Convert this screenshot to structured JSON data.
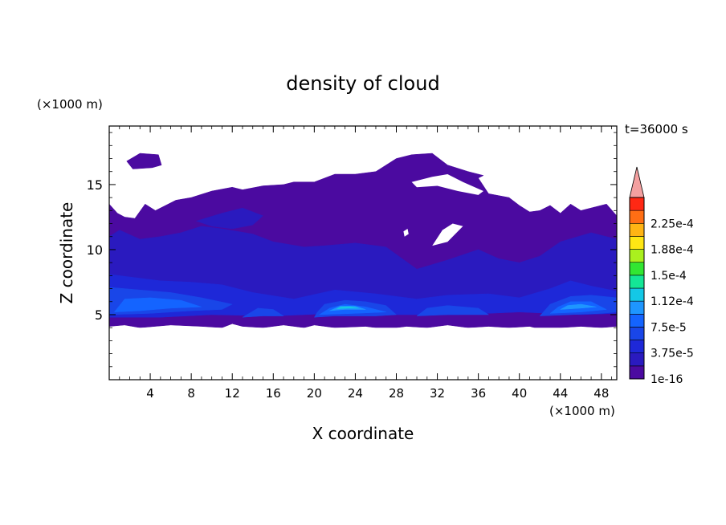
{
  "chart_data": {
    "type": "heatmap",
    "title": "density of cloud",
    "xlabel": "X coordinate",
    "ylabel": "Z coordinate",
    "x_unit": "(×1000 m)",
    "y_unit": "(×1000 m)",
    "time_label": "t=36000 s",
    "xlim": [
      0,
      49.5
    ],
    "ylim": [
      0,
      19.5
    ],
    "x_ticks": [
      4,
      8,
      12,
      16,
      20,
      24,
      28,
      32,
      36,
      40,
      44,
      48
    ],
    "y_ticks": [
      5,
      10,
      15
    ],
    "colorbar": {
      "labels": [
        "2.25e-4",
        "1.88e-4",
        "1.5e-4",
        "1.12e-4",
        "7.5e-5",
        "3.75e-5",
        "1e-16"
      ],
      "levels": [
        1e-16,
        1.875e-05,
        3.75e-05,
        5.625e-05,
        7.5e-05,
        9.375e-05,
        0.0001125,
        0.00013125,
        0.00015,
        0.00016875,
        0.0001875,
        0.00020625,
        0.000225,
        0.00024375
      ],
      "colors": [
        "#4B0AA0",
        "#2A1ABF",
        "#1E28D8",
        "#1946E8",
        "#1464FF",
        "#1E96FF",
        "#14C8E6",
        "#14E696",
        "#32E632",
        "#AAF01E",
        "#FFE614",
        "#FFB414",
        "#FF6E14",
        "#FF2814"
      ],
      "extend_color": "#F4A0A0"
    },
    "regions": [
      {
        "level": 0,
        "points": [
          [
            0,
            4.1
          ],
          [
            1.5,
            4.2
          ],
          [
            3,
            4.0
          ],
          [
            6,
            4.2
          ],
          [
            9,
            4.1
          ],
          [
            11,
            4.0
          ],
          [
            12,
            4.3
          ],
          [
            13,
            4.1
          ],
          [
            15,
            4.0
          ],
          [
            17,
            4.2
          ],
          [
            19,
            4.0
          ],
          [
            20,
            4.2
          ],
          [
            22,
            4.0
          ],
          [
            25,
            4.1
          ],
          [
            27,
            3.9
          ],
          [
            29,
            4.1
          ],
          [
            31,
            4.0
          ],
          [
            33,
            4.2
          ],
          [
            35,
            4.0
          ],
          [
            37,
            4.1
          ],
          [
            39,
            4.0
          ],
          [
            41,
            4.1
          ],
          [
            42,
            3.9
          ],
          [
            44,
            4.0
          ],
          [
            46,
            4.1
          ],
          [
            48,
            4.0
          ],
          [
            49.5,
            4.1
          ],
          [
            49.5,
            12.6
          ],
          [
            48.5,
            13.5
          ],
          [
            46,
            13.0
          ],
          [
            45,
            13.5
          ],
          [
            44,
            12.8
          ],
          [
            43,
            13.4
          ],
          [
            42,
            13.0
          ],
          [
            41,
            12.9
          ],
          [
            40,
            13.4
          ],
          [
            39,
            14.0
          ],
          [
            37,
            14.3
          ],
          [
            36,
            15.5
          ],
          [
            36.5,
            15.7
          ],
          [
            35,
            16.0
          ],
          [
            33,
            16.5
          ],
          [
            31.5,
            17.4
          ],
          [
            29.5,
            17.3
          ],
          [
            28,
            17.0
          ],
          [
            26,
            16.0
          ],
          [
            24,
            15.8
          ],
          [
            22,
            15.8
          ],
          [
            20,
            15.2
          ],
          [
            18,
            15.2
          ],
          [
            17,
            15.0
          ],
          [
            15,
            14.9
          ],
          [
            13,
            14.6
          ],
          [
            12,
            14.8
          ],
          [
            10,
            14.5
          ],
          [
            8,
            14.0
          ],
          [
            6.5,
            13.8
          ],
          [
            4.5,
            13.0
          ],
          [
            3.5,
            13.5
          ],
          [
            2.5,
            12.4
          ],
          [
            1.5,
            12.5
          ],
          [
            0.8,
            12.8
          ],
          [
            0,
            13.5
          ]
        ]
      },
      {
        "level": 0,
        "points": [
          [
            1.7,
            16.8
          ],
          [
            3,
            17.4
          ],
          [
            4.8,
            17.3
          ],
          [
            5.1,
            16.5
          ],
          [
            4.2,
            16.3
          ],
          [
            2.3,
            16.2
          ]
        ]
      },
      {
        "level": 1,
        "points": [
          [
            0,
            5.2
          ],
          [
            3,
            5.0
          ],
          [
            6,
            5.1
          ],
          [
            9,
            5.3
          ],
          [
            12,
            5.5
          ],
          [
            16,
            5.3
          ],
          [
            20,
            5.6
          ],
          [
            25,
            5.4
          ],
          [
            29,
            5.2
          ],
          [
            33,
            5.5
          ],
          [
            37,
            5.3
          ],
          [
            40,
            5.6
          ],
          [
            44,
            5.3
          ],
          [
            49.5,
            5.5
          ],
          [
            49.5,
            10.8
          ],
          [
            47,
            11.3
          ],
          [
            44,
            10.6
          ],
          [
            42,
            9.5
          ],
          [
            40,
            9.0
          ],
          [
            38,
            9.3
          ],
          [
            36,
            10.0
          ],
          [
            33,
            9.2
          ],
          [
            30,
            8.5
          ],
          [
            27,
            10.2
          ],
          [
            24,
            10.5
          ],
          [
            21,
            10.3
          ],
          [
            19,
            10.2
          ],
          [
            16,
            10.6
          ],
          [
            14,
            11.2
          ],
          [
            11,
            11.6
          ],
          [
            9,
            11.8
          ],
          [
            7,
            11.3
          ],
          [
            5,
            11.0
          ],
          [
            3,
            10.8
          ],
          [
            1,
            11.5
          ],
          [
            0,
            11.0
          ]
        ]
      },
      {
        "level": 1,
        "points": [
          [
            8.5,
            12.2
          ],
          [
            11,
            12.8
          ],
          [
            13,
            13.2
          ],
          [
            15,
            12.6
          ],
          [
            14,
            11.9
          ],
          [
            12,
            11.6
          ],
          [
            10,
            11.8
          ]
        ]
      },
      {
        "level": 2,
        "points": [
          [
            0,
            4.8
          ],
          [
            5,
            4.8
          ],
          [
            10,
            5.0
          ],
          [
            16,
            4.9
          ],
          [
            22,
            5.1
          ],
          [
            28,
            5.0
          ],
          [
            34,
            5.0
          ],
          [
            40,
            5.2
          ],
          [
            46,
            5.0
          ],
          [
            49.5,
            5.1
          ],
          [
            49.5,
            6.8
          ],
          [
            47,
            7.2
          ],
          [
            45,
            7.6
          ],
          [
            43,
            7.0
          ],
          [
            40,
            6.3
          ],
          [
            37,
            6.6
          ],
          [
            33,
            6.5
          ],
          [
            30,
            6.2
          ],
          [
            26,
            6.6
          ],
          [
            22,
            6.9
          ],
          [
            18,
            6.2
          ],
          [
            14,
            6.7
          ],
          [
            11,
            7.3
          ],
          [
            8,
            7.5
          ],
          [
            5,
            7.6
          ],
          [
            2,
            7.9
          ],
          [
            0,
            8.1
          ]
        ]
      },
      {
        "level": 3,
        "points": [
          [
            0,
            5.0
          ],
          [
            4,
            5.1
          ],
          [
            8,
            5.3
          ],
          [
            11,
            5.4
          ],
          [
            12,
            5.8
          ],
          [
            9,
            6.3
          ],
          [
            6,
            6.7
          ],
          [
            3,
            6.9
          ],
          [
            0,
            7.1
          ]
        ]
      },
      {
        "level": 3,
        "points": [
          [
            20,
            4.8
          ],
          [
            22,
            4.9
          ],
          [
            26,
            4.9
          ],
          [
            28,
            5.0
          ],
          [
            27,
            5.7
          ],
          [
            25,
            6.0
          ],
          [
            23,
            6.1
          ],
          [
            21,
            5.8
          ],
          [
            20.3,
            5.2
          ]
        ]
      },
      {
        "level": 3,
        "points": [
          [
            42,
            4.9
          ],
          [
            45,
            5.0
          ],
          [
            48,
            5.1
          ],
          [
            49.5,
            5.2
          ],
          [
            49.5,
            6.3
          ],
          [
            47,
            6.5
          ],
          [
            45,
            6.4
          ],
          [
            43,
            5.8
          ]
        ]
      },
      {
        "level": 3,
        "points": [
          [
            13,
            4.8
          ],
          [
            15,
            4.9
          ],
          [
            17,
            4.9
          ],
          [
            16,
            5.4
          ],
          [
            14.5,
            5.5
          ]
        ]
      },
      {
        "level": 3,
        "points": [
          [
            30,
            4.9
          ],
          [
            33,
            5.0
          ],
          [
            37,
            5.0
          ],
          [
            36,
            5.5
          ],
          [
            33,
            5.7
          ],
          [
            31,
            5.5
          ]
        ]
      },
      {
        "level": 4,
        "points": [
          [
            0.5,
            5.2
          ],
          [
            3,
            5.3
          ],
          [
            6,
            5.5
          ],
          [
            9,
            5.6
          ],
          [
            7,
            6.1
          ],
          [
            4,
            6.3
          ],
          [
            1.5,
            6.2
          ]
        ]
      },
      {
        "level": 4,
        "points": [
          [
            20.5,
            5.0
          ],
          [
            24,
            5.1
          ],
          [
            27,
            5.2
          ],
          [
            25,
            5.6
          ],
          [
            23,
            5.8
          ],
          [
            21.5,
            5.5
          ]
        ]
      },
      {
        "level": 4,
        "points": [
          [
            43,
            5.1
          ],
          [
            46,
            5.2
          ],
          [
            48.5,
            5.4
          ],
          [
            47,
            6.0
          ],
          [
            45,
            6.0
          ],
          [
            43.8,
            5.6
          ]
        ]
      },
      {
        "level": 5,
        "points": [
          [
            21.5,
            5.3
          ],
          [
            23,
            5.4
          ],
          [
            25,
            5.4
          ],
          [
            24,
            5.65
          ],
          [
            22.5,
            5.65
          ]
        ]
      },
      {
        "level": 5,
        "points": [
          [
            44,
            5.4
          ],
          [
            46,
            5.5
          ],
          [
            47.5,
            5.6
          ],
          [
            46,
            5.8
          ],
          [
            44.7,
            5.7
          ]
        ]
      },
      {
        "level": 6,
        "points": [
          [
            22.2,
            5.45
          ],
          [
            23.3,
            5.5
          ],
          [
            24.3,
            5.5
          ],
          [
            23.5,
            5.62
          ],
          [
            22.6,
            5.6
          ]
        ]
      }
    ],
    "holes": [
      [
        [
          29.5,
          15.2
        ],
        [
          31.5,
          15.6
        ],
        [
          33,
          15.8
        ],
        [
          34.5,
          15.2
        ],
        [
          36.5,
          14.5
        ],
        [
          36,
          14.2
        ],
        [
          34,
          14.5
        ],
        [
          32,
          14.9
        ],
        [
          30,
          14.8
        ]
      ],
      [
        [
          31.5,
          10.3
        ],
        [
          33,
          10.6
        ],
        [
          34.5,
          11.8
        ],
        [
          33.5,
          12.0
        ],
        [
          32.5,
          11.5
        ]
      ],
      [
        [
          28.8,
          11.0
        ],
        [
          29.2,
          11.2
        ],
        [
          29.1,
          11.6
        ],
        [
          28.7,
          11.4
        ]
      ],
      [
        [
          0,
          4.0
        ],
        [
          49.5,
          4.0
        ],
        [
          49.5,
          0
        ],
        [
          0,
          0
        ]
      ]
    ]
  }
}
